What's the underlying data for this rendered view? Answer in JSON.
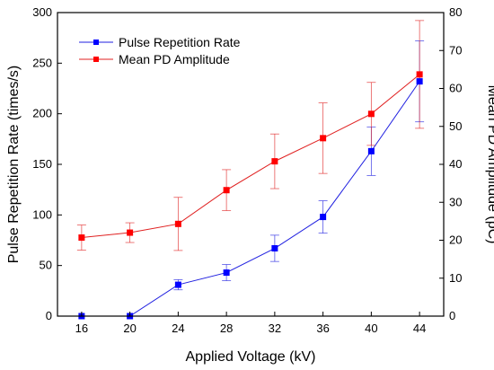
{
  "chart_data": {
    "type": "line",
    "xlabel": "Applied Voltage (kV)",
    "ylabel_left": "Pulse Repetition Rate (times/s)",
    "ylabel_right": "Mean PD Amplitude (pC)",
    "x": [
      16,
      20,
      24,
      28,
      32,
      36,
      40,
      44
    ],
    "xlim": [
      14,
      46
    ],
    "ylim_left": [
      0,
      300
    ],
    "ylim_right": [
      0,
      80
    ],
    "xticks": [
      16,
      20,
      24,
      28,
      32,
      36,
      40,
      44
    ],
    "yticks_left": [
      0,
      50,
      100,
      150,
      200,
      250,
      300
    ],
    "yticks_right": [
      0,
      10,
      20,
      30,
      40,
      50,
      60,
      70,
      80
    ],
    "legend_position": "top-left",
    "series": [
      {
        "name": "Pulse Repetition Rate",
        "axis": "left",
        "color": "#1f1fe0",
        "marker_color": "#0000ff",
        "values": [
          0,
          0,
          31,
          43,
          67,
          98,
          163,
          232
        ],
        "error": [
          0,
          0,
          5,
          8,
          13,
          16,
          24,
          40
        ]
      },
      {
        "name": "Mean PD Amplitude",
        "axis": "right",
        "color": "#e02020",
        "marker_color": "#ff0000",
        "values": [
          20.7,
          22.0,
          24.3,
          33.2,
          40.8,
          46.9,
          53.3,
          63.7
        ],
        "error": [
          3.3,
          2.6,
          7.0,
          5.4,
          7.2,
          9.3,
          8.3,
          14.2
        ]
      }
    ]
  }
}
